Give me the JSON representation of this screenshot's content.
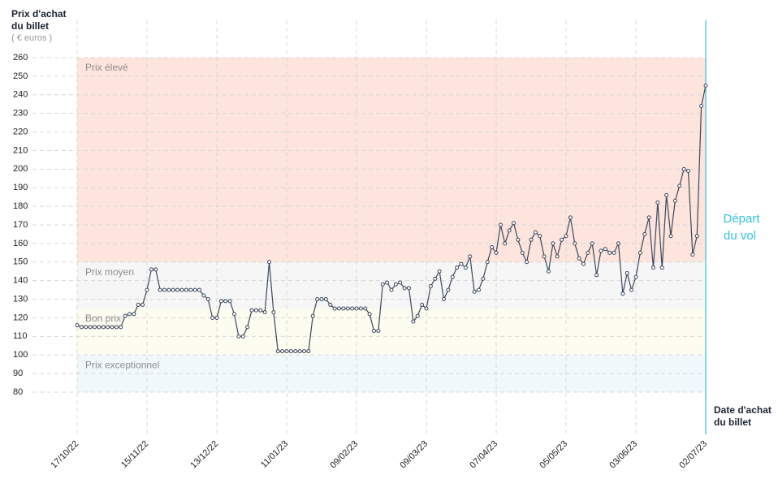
{
  "chart_data": {
    "type": "line",
    "y_label": [
      "Prix d'achat",
      "du billet"
    ],
    "y_unit": "( € euros )",
    "x_label": [
      "Date d'achat",
      "du billet"
    ],
    "annotation": [
      "Départ",
      "du vol"
    ],
    "ylim": [
      80,
      260
    ],
    "yticks": [
      80,
      90,
      100,
      110,
      120,
      130,
      140,
      150,
      160,
      170,
      180,
      190,
      200,
      210,
      220,
      230,
      240,
      250,
      260
    ],
    "grid": true,
    "bands": [
      {
        "label": "Prix élevé",
        "from": 150,
        "to": 260,
        "color": "#fde4dd"
      },
      {
        "label": "Prix moyen",
        "from": 125,
        "to": 150,
        "color": "#f6f6f6"
      },
      {
        "label": "Bon prix",
        "from": 100,
        "to": 125,
        "color": "#fcfcf0"
      },
      {
        "label": "Prix exceptionnel",
        "from": 80,
        "to": 100,
        "color": "#f0f8fb"
      }
    ],
    "categories": [
      "17/10/22",
      null,
      null,
      null,
      null,
      null,
      null,
      null,
      null,
      null,
      null,
      null,
      null,
      null,
      null,
      null,
      "15/11/22",
      null,
      null,
      null,
      null,
      null,
      null,
      null,
      null,
      null,
      null,
      null,
      null,
      null,
      null,
      null,
      "13/12/22",
      null,
      null,
      null,
      null,
      null,
      null,
      null,
      null,
      null,
      null,
      null,
      null,
      null,
      null,
      null,
      "11/01/23",
      null,
      null,
      null,
      null,
      null,
      null,
      null,
      null,
      null,
      null,
      null,
      null,
      null,
      null,
      null,
      "09/02/23",
      null,
      null,
      null,
      null,
      null,
      null,
      null,
      null,
      null,
      null,
      null,
      null,
      null,
      null,
      null,
      "09/03/23",
      null,
      null,
      null,
      null,
      null,
      null,
      null,
      null,
      null,
      null,
      null,
      null,
      null,
      null,
      null,
      "07/04/23",
      null,
      null,
      null,
      null,
      null,
      null,
      null,
      null,
      null,
      null,
      null,
      null,
      null,
      null,
      null,
      "05/05/23",
      null,
      null,
      null,
      null,
      null,
      null,
      null,
      null,
      null,
      null,
      null,
      null,
      null,
      null,
      null,
      "03/06/23",
      null,
      null,
      null,
      null,
      null,
      null,
      null,
      null,
      null,
      null,
      null,
      null,
      null,
      null,
      null,
      "02/07/23"
    ],
    "series": [
      {
        "color": "#3b475a",
        "values": [
          116,
          115,
          115,
          115,
          115,
          115,
          115,
          115,
          115,
          115,
          115,
          121,
          122,
          122,
          127,
          127,
          135,
          146,
          146,
          135,
          135,
          135,
          135,
          135,
          135,
          135,
          135,
          135,
          135,
          132,
          130,
          120,
          120,
          129,
          129,
          129,
          122,
          110,
          110,
          115,
          124,
          124,
          124,
          123,
          150,
          123,
          102,
          102,
          102,
          102,
          102,
          102,
          102,
          102,
          121,
          130,
          130,
          130,
          127,
          125,
          125,
          125,
          125,
          125,
          125,
          125,
          125,
          122,
          113,
          113,
          138,
          139,
          135,
          138,
          139,
          136,
          136,
          118,
          121,
          127,
          125,
          137,
          141,
          145,
          130,
          135,
          142,
          147,
          149,
          147,
          153,
          134,
          135,
          141,
          150,
          158,
          155,
          170,
          160,
          167,
          171,
          162,
          155,
          150,
          162,
          166,
          164,
          153,
          145,
          160,
          153,
          162,
          164,
          174,
          160,
          152,
          149,
          155,
          160,
          143,
          156,
          157,
          155,
          155,
          160,
          133,
          144,
          135,
          142,
          155,
          165,
          174,
          147,
          182,
          147,
          186,
          164,
          183,
          191,
          200,
          199,
          154,
          164,
          234,
          245
        ]
      }
    ]
  }
}
